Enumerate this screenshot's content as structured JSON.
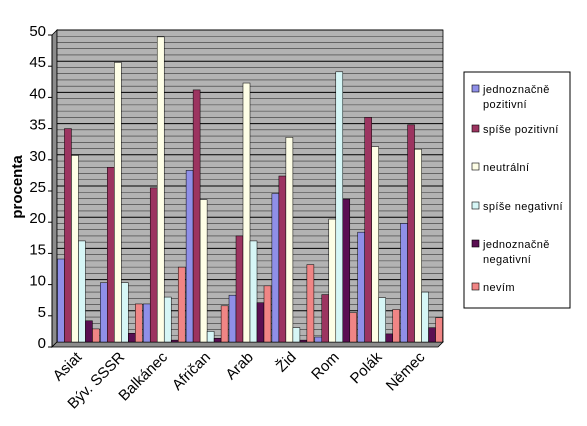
{
  "chart_data": {
    "type": "bar",
    "title": "",
    "xlabel": "",
    "ylabel": "procenta",
    "ylim": [
      0,
      50
    ],
    "yticks": [
      0,
      5,
      10,
      15,
      20,
      25,
      30,
      35,
      40,
      45,
      50
    ],
    "grid": true,
    "legend_position": "right",
    "plot_background": "#b3b3b3",
    "categories": [
      "Asiat",
      "Býv. SSSR",
      "Balkánec",
      "Afričan",
      "Arab",
      "Žid",
      "Rom",
      "Polák",
      "Němec"
    ],
    "series": [
      {
        "name": "jednoznačně pozitivní",
        "color": "#8f8fe8",
        "values": [
          13.3,
          9.5,
          6.1,
          27.5,
          7.5,
          23.8,
          0.8,
          17.6,
          19.0
        ]
      },
      {
        "name": "spíše pozitivní",
        "color": "#9c3460",
        "values": [
          34.2,
          28.0,
          24.7,
          40.4,
          17.0,
          26.6,
          7.6,
          36.0,
          34.8
        ]
      },
      {
        "name": "neutrální",
        "color": "#fefee6",
        "values": [
          29.9,
          44.8,
          48.9,
          22.8,
          41.5,
          32.8,
          19.7,
          31.3,
          30.9
        ]
      },
      {
        "name": "spíše negativní",
        "color": "#d6f6f6",
        "values": [
          16.2,
          9.5,
          7.2,
          1.7,
          16.2,
          2.3,
          43.3,
          7.1,
          8.0
        ]
      },
      {
        "name": "jednoznačně negativní",
        "color": "#5a0f52",
        "values": [
          3.4,
          1.4,
          0.3,
          0.6,
          6.3,
          0.3,
          22.9,
          1.3,
          2.3
        ]
      },
      {
        "name": "nevím",
        "color": "#f08585",
        "values": [
          2.1,
          6.1,
          12.0,
          5.8,
          9.0,
          12.4,
          4.7,
          5.2,
          3.9
        ]
      }
    ]
  }
}
